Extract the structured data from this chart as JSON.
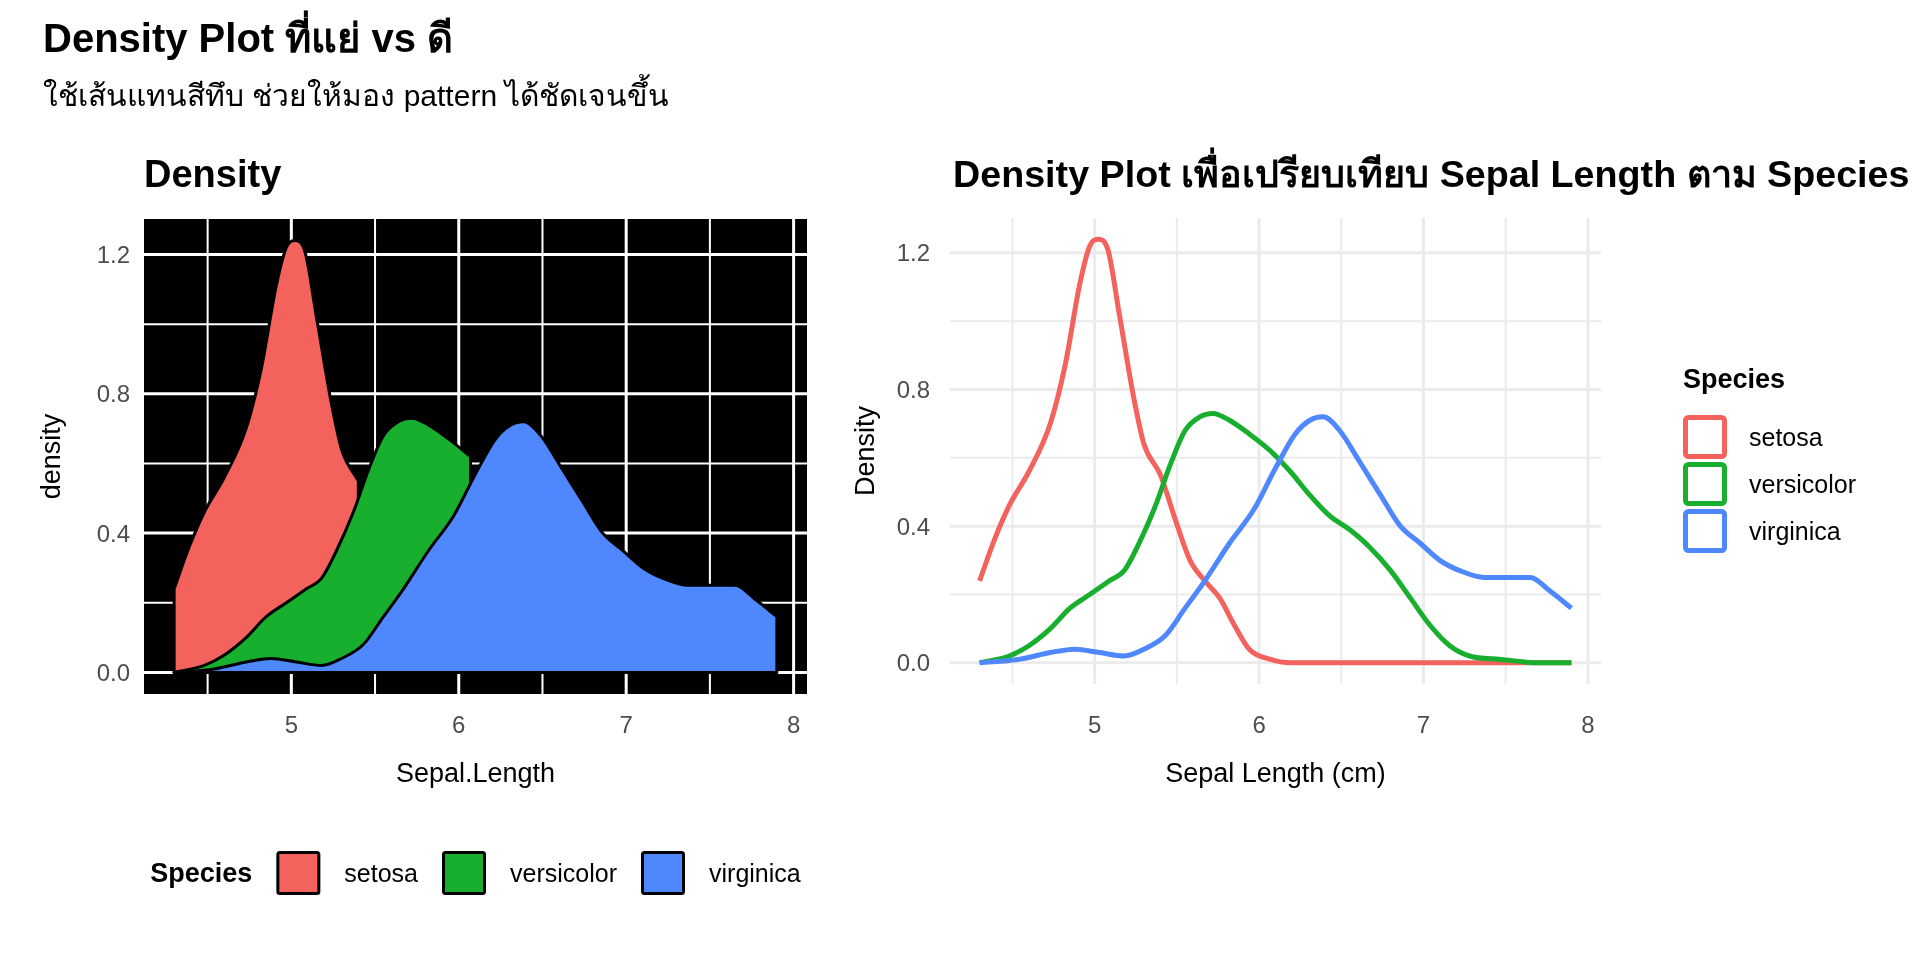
{
  "chart_data": [
    {
      "type": "other",
      "title": "Density Plot ที่แย่ vs ดี",
      "subtitle": "ใช้เส้นแทนสีทึบ ช่วยให้มอง pattern ได้ชัดเจนขึ้น"
    },
    {
      "type": "area",
      "title": "Density",
      "xlabel": "Sepal.Length",
      "ylabel": "density",
      "legend_title": "Species",
      "legend": "bottom",
      "grid": true,
      "xlim": [
        4.12,
        8.08
      ],
      "ylim": [
        -0.062,
        1.302
      ],
      "xticks": [
        5,
        6,
        7,
        8
      ],
      "yticks": [
        {
          "value": 0,
          "label": "0.0"
        },
        0.4,
        0.8,
        1.2
      ],
      "series": [
        {
          "name": "setosa",
          "color": "#f4625e",
          "x": [
            4.3,
            4.39,
            4.48,
            4.6,
            4.73,
            4.82,
            4.91,
            4.97,
            5.02,
            5.08,
            5.15,
            5.24,
            5.3,
            5.4
          ],
          "values": [
            0.24,
            0.36,
            0.46,
            0.56,
            0.7,
            0.87,
            1.11,
            1.22,
            1.24,
            1.21,
            1.02,
            0.77,
            0.64,
            0.55
          ]
        },
        {
          "name": "versicolor",
          "color": "#19af2e",
          "x": [
            4.3,
            4.48,
            4.6,
            4.73,
            4.85,
            4.97,
            5.09,
            5.18,
            5.27,
            5.37,
            5.46,
            5.55,
            5.64,
            5.72,
            5.82,
            5.94,
            6.07
          ],
          "values": [
            0,
            0.02,
            0.05,
            0.1,
            0.16,
            0.2,
            0.24,
            0.27,
            0.35,
            0.46,
            0.58,
            0.68,
            0.72,
            0.73,
            0.71,
            0.67,
            0.62
          ]
        },
        {
          "name": "virginica",
          "color": "#4f87ff",
          "x": [
            4.3,
            4.54,
            4.73,
            4.88,
            5.03,
            5.18,
            5.3,
            5.43,
            5.55,
            5.67,
            5.82,
            5.97,
            6.1,
            6.22,
            6.31,
            6.39,
            6.49,
            6.61,
            6.74,
            6.86,
            6.98,
            7.1,
            7.22,
            7.37,
            7.53,
            7.65,
            7.77,
            7.9
          ],
          "values": [
            0,
            0.01,
            0.03,
            0.04,
            0.03,
            0.02,
            0.04,
            0.08,
            0.16,
            0.24,
            0.35,
            0.45,
            0.57,
            0.67,
            0.71,
            0.72,
            0.68,
            0.59,
            0.49,
            0.4,
            0.35,
            0.3,
            0.27,
            0.25,
            0.25,
            0.25,
            0.21,
            0.16
          ]
        }
      ]
    },
    {
      "type": "line",
      "title": "Density Plot เพื่อเปรียบเทียบ Sepal Length ตาม Species",
      "xlabel": "Sepal Length (cm)",
      "ylabel": "Density",
      "legend_title": "Species",
      "legend": "right",
      "grid": true,
      "xlim": [
        4.12,
        8.08
      ],
      "ylim": [
        -0.062,
        1.302
      ],
      "xticks": [
        5,
        6,
        7,
        8
      ],
      "yticks": [
        {
          "value": 0,
          "label": "0.0"
        },
        0.4,
        0.8,
        1.2
      ],
      "series": [
        {
          "name": "setosa",
          "color": "#f4625e",
          "x": [
            4.3,
            4.39,
            4.48,
            4.6,
            4.73,
            4.82,
            4.91,
            4.97,
            5.02,
            5.08,
            5.15,
            5.24,
            5.3,
            5.4,
            5.49,
            5.58,
            5.67,
            5.76,
            5.85,
            5.94,
            6.07,
            6.19,
            7.9
          ],
          "values": [
            0.24,
            0.36,
            0.46,
            0.56,
            0.7,
            0.87,
            1.11,
            1.22,
            1.24,
            1.21,
            1.02,
            0.77,
            0.64,
            0.55,
            0.42,
            0.3,
            0.24,
            0.19,
            0.11,
            0.04,
            0.01,
            0,
            0
          ]
        },
        {
          "name": "versicolor",
          "color": "#19af2e",
          "x": [
            4.3,
            4.48,
            4.6,
            4.73,
            4.85,
            4.97,
            5.09,
            5.18,
            5.27,
            5.37,
            5.46,
            5.55,
            5.64,
            5.72,
            5.82,
            5.94,
            6.07,
            6.19,
            6.31,
            6.43,
            6.55,
            6.67,
            6.8,
            6.92,
            7.04,
            7.16,
            7.28,
            7.47,
            7.71,
            7.9
          ],
          "values": [
            0,
            0.02,
            0.05,
            0.1,
            0.16,
            0.2,
            0.24,
            0.27,
            0.35,
            0.46,
            0.58,
            0.68,
            0.72,
            0.73,
            0.71,
            0.67,
            0.62,
            0.56,
            0.49,
            0.43,
            0.39,
            0.34,
            0.27,
            0.19,
            0.11,
            0.05,
            0.02,
            0.01,
            0,
            0
          ]
        },
        {
          "name": "virginica",
          "color": "#4f87ff",
          "x": [
            4.3,
            4.54,
            4.73,
            4.88,
            5.03,
            5.18,
            5.3,
            5.43,
            5.55,
            5.67,
            5.82,
            5.97,
            6.1,
            6.22,
            6.31,
            6.39,
            6.49,
            6.61,
            6.74,
            6.86,
            6.98,
            7.1,
            7.22,
            7.37,
            7.53,
            7.65,
            7.77,
            7.9
          ],
          "values": [
            0,
            0.01,
            0.03,
            0.04,
            0.03,
            0.02,
            0.04,
            0.08,
            0.16,
            0.24,
            0.35,
            0.45,
            0.57,
            0.67,
            0.71,
            0.72,
            0.68,
            0.59,
            0.49,
            0.4,
            0.35,
            0.3,
            0.27,
            0.25,
            0.25,
            0.25,
            0.21,
            0.16
          ]
        }
      ]
    }
  ]
}
